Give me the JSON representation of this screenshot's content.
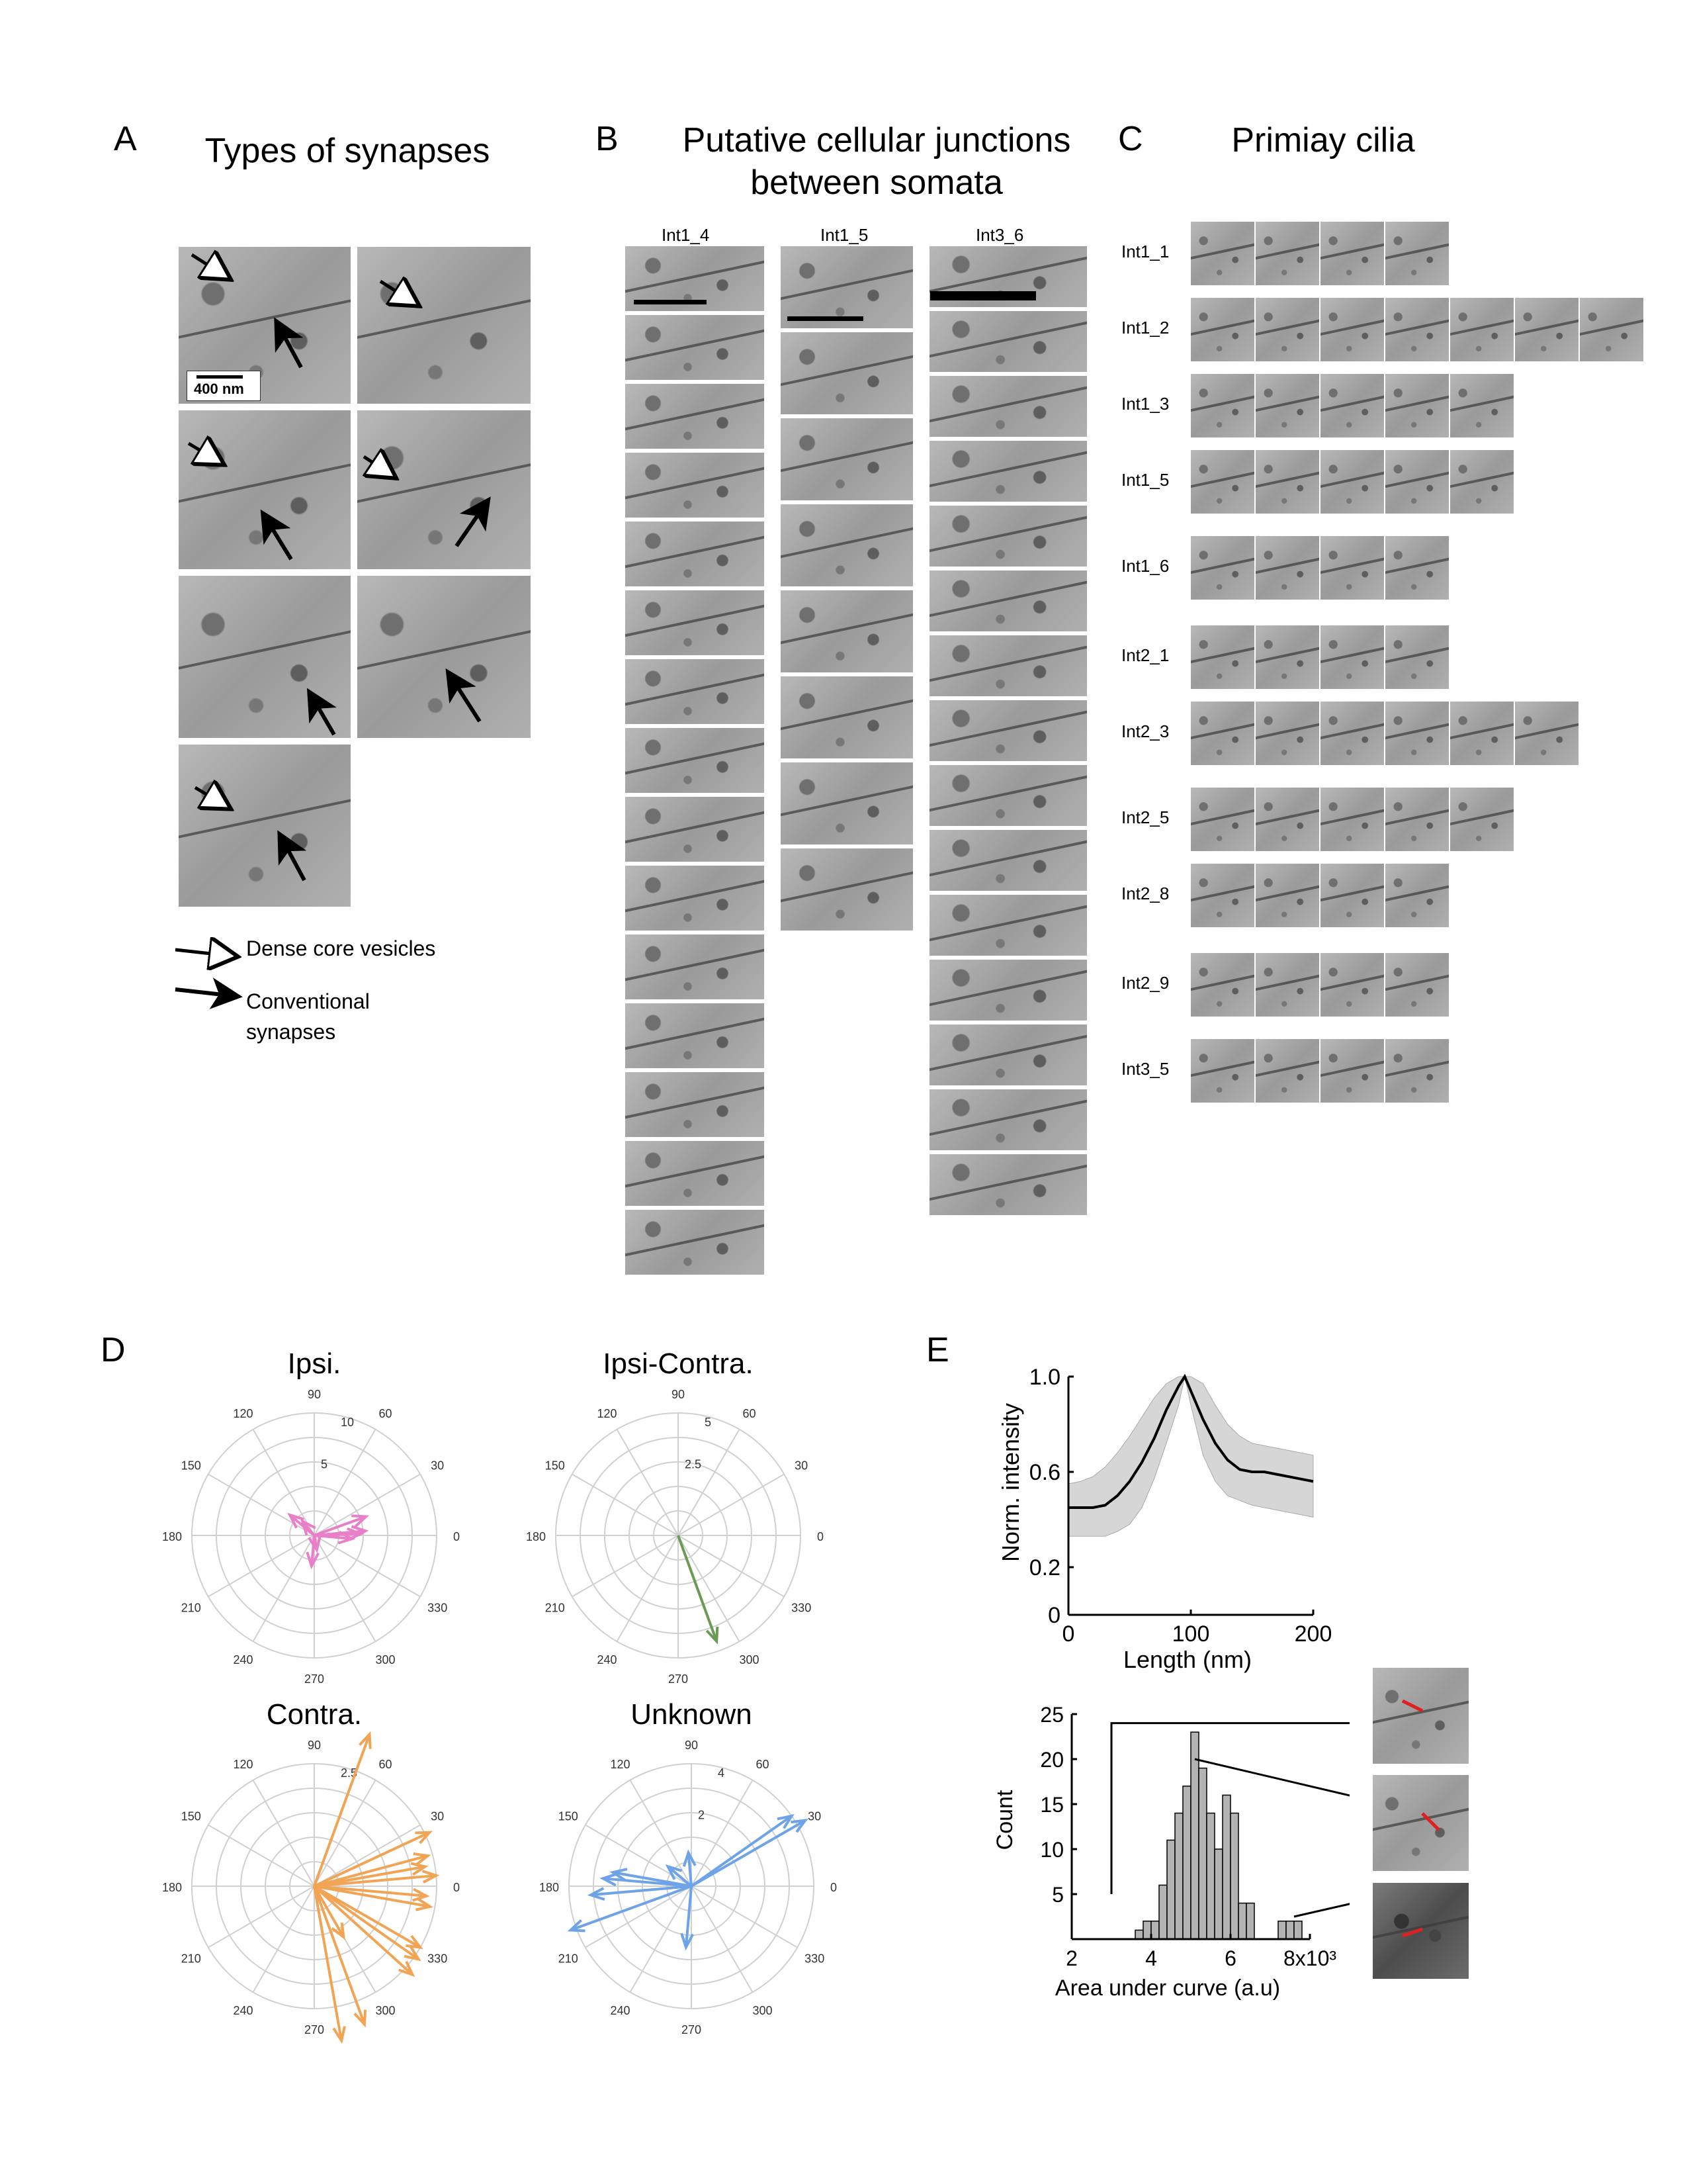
{
  "panels": {
    "A": {
      "letter": "A",
      "title": "Types of synapses",
      "scale_bar": "400 nm",
      "legend": [
        {
          "label": "Dense core vesicles",
          "icon": "open-arrow-icon"
        },
        {
          "label": "Conventional synapses",
          "icon": "closed-arrow-icon"
        }
      ]
    },
    "B": {
      "letter": "B",
      "title_line1": "Putative cellular junctions",
      "title_line2": "between somata",
      "columns": [
        "Int1_4",
        "Int1_5",
        "Int3_6"
      ]
    },
    "C": {
      "letter": "C",
      "title": "Primiay cilia",
      "rows": [
        "Int1_1",
        "Int1_2",
        "Int1_3",
        "Int1_5",
        "Int1_6",
        "Int2_1",
        "Int2_3",
        "Int2_5",
        "Int2_8",
        "Int2_9",
        "Int3_5"
      ]
    },
    "D": {
      "letter": "D",
      "polar_plots": [
        {
          "title": "Ipsi.",
          "color": "#e87fc8",
          "rmax_label": "10",
          "rmid_label": "5"
        },
        {
          "title": "Ipsi-Contra.",
          "color": "#6b9a55",
          "rmax_label": "5",
          "rmid_label": "2.5"
        },
        {
          "title": "Contra.",
          "color": "#f2a455",
          "rmax_label": "2.5",
          "rmid_label": ""
        },
        {
          "title": "Unknown",
          "color": "#6fa3e8",
          "rmax_label": "4",
          "rmid_label": "2"
        }
      ],
      "angle_labels": [
        "90",
        "60",
        "30",
        "0",
        "330",
        "300",
        "270",
        "240",
        "210",
        "180",
        "150",
        "120"
      ]
    },
    "E": {
      "letter": "E"
    }
  },
  "chart_data": [
    {
      "type": "line",
      "x": [
        0,
        10,
        20,
        30,
        40,
        50,
        60,
        70,
        80,
        90,
        95,
        100,
        110,
        120,
        130,
        140,
        150,
        160,
        170,
        180,
        190,
        200
      ],
      "series": [
        {
          "values": [
            0.45,
            0.45,
            0.45,
            0.46,
            0.5,
            0.56,
            0.64,
            0.74,
            0.86,
            0.96,
            1.0,
            0.94,
            0.82,
            0.72,
            0.65,
            0.61,
            0.6,
            0.6,
            0.59,
            0.58,
            0.57,
            0.56
          ]
        }
      ],
      "band_upper": [
        0.55,
        0.56,
        0.58,
        0.62,
        0.68,
        0.75,
        0.83,
        0.91,
        0.97,
        1.0,
        1.0,
        1.0,
        0.97,
        0.88,
        0.8,
        0.75,
        0.72,
        0.71,
        0.7,
        0.69,
        0.68,
        0.67
      ],
      "band_lower": [
        0.33,
        0.33,
        0.33,
        0.33,
        0.35,
        0.38,
        0.45,
        0.57,
        0.72,
        0.88,
        1.0,
        0.88,
        0.67,
        0.56,
        0.5,
        0.48,
        0.46,
        0.45,
        0.44,
        0.43,
        0.42,
        0.41
      ],
      "xlabel": "Length (nm)",
      "ylabel": "Norm. intensity",
      "xlim": [
        0,
        200
      ],
      "ylim": [
        0,
        1.0
      ],
      "xticks": [
        "0",
        "100",
        "200"
      ],
      "yticks": [
        "0",
        "0.2",
        "0.6",
        "1.0"
      ]
    },
    {
      "type": "bar",
      "x": [
        3.6,
        3.8,
        4.0,
        4.2,
        4.4,
        4.6,
        4.8,
        5.0,
        5.2,
        5.4,
        5.6,
        5.8,
        6.0,
        6.2,
        6.4,
        6.6,
        6.8,
        7.0,
        7.2,
        7.4,
        7.6,
        7.8
      ],
      "values": [
        1,
        2,
        2,
        6,
        11,
        14,
        17,
        23,
        19,
        14,
        10,
        16,
        14,
        4,
        4,
        0,
        0,
        0,
        2,
        2,
        2,
        0
      ],
      "xlabel": "Area under curve (a.u)",
      "ylabel": "Count",
      "xlim": [
        2,
        8
      ],
      "ylim": [
        0,
        25
      ],
      "xticks": [
        "2",
        "4",
        "6",
        "8x10³"
      ],
      "yticks": [
        "5",
        "10",
        "15",
        "20",
        "25"
      ]
    }
  ],
  "polar_vectors": {
    "ipsi": [
      [
        5,
        4.2
      ],
      [
        20,
        4.5
      ],
      [
        2,
        3.8
      ],
      [
        355,
        3.1
      ],
      [
        140,
        2.6
      ],
      [
        130,
        1.5
      ],
      [
        265,
        2.5
      ],
      [
        280,
        1.2
      ]
    ],
    "ipsi_contra": [
      [
        290,
        4.6
      ]
    ],
    "contra": [
      [
        10,
        2.3
      ],
      [
        15,
        2.4
      ],
      [
        5,
        2.5
      ],
      [
        355,
        2.3
      ],
      [
        350,
        2.4
      ],
      [
        25,
        2.6
      ],
      [
        330,
        2.5
      ],
      [
        325,
        2.6
      ],
      [
        318,
        2.7
      ],
      [
        300,
        1.2
      ],
      [
        290,
        3.0
      ],
      [
        280,
        3.2
      ],
      [
        70,
        3.3
      ]
    ],
    "unknown": [
      [
        30,
        4.3
      ],
      [
        35,
        4.0
      ],
      [
        185,
        3.3
      ],
      [
        170,
        2.6
      ],
      [
        175,
        2.9
      ],
      [
        200,
        4.2
      ],
      [
        95,
        1.1
      ],
      [
        265,
        2.0
      ],
      [
        140,
        1.0
      ]
    ]
  }
}
